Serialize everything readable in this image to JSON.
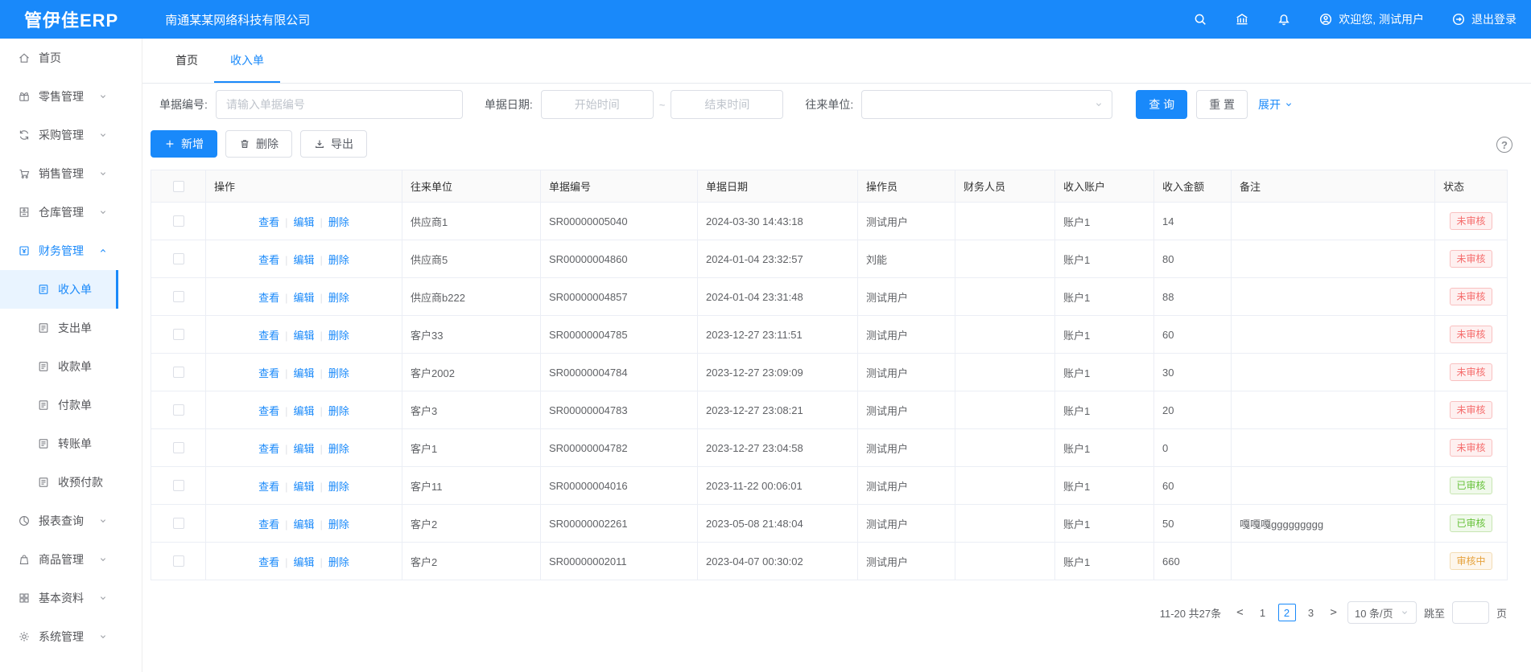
{
  "topbar": {
    "logo": "管伊佳ERP",
    "company": "南通某某网络科技有限公司",
    "welcome": "欢迎您, 测试用户",
    "logout": "退出登录"
  },
  "sidebar": {
    "items": [
      {
        "label": "首页",
        "icon": "home-icon"
      },
      {
        "label": "零售管理",
        "icon": "retail-icon",
        "chevron": "down"
      },
      {
        "label": "采购管理",
        "icon": "purchase-icon",
        "chevron": "down"
      },
      {
        "label": "销售管理",
        "icon": "sales-icon",
        "chevron": "down"
      },
      {
        "label": "仓库管理",
        "icon": "warehouse-icon",
        "chevron": "down"
      },
      {
        "label": "财务管理",
        "icon": "finance-icon",
        "chevron": "up",
        "active": true,
        "children": [
          {
            "label": "收入单",
            "icon": "doc-icon",
            "active": true
          },
          {
            "label": "支出单",
            "icon": "doc-icon"
          },
          {
            "label": "收款单",
            "icon": "doc-icon"
          },
          {
            "label": "付款单",
            "icon": "doc-icon"
          },
          {
            "label": "转账单",
            "icon": "doc-icon"
          },
          {
            "label": "收预付款",
            "icon": "doc-icon"
          }
        ]
      },
      {
        "label": "报表查询",
        "icon": "report-icon",
        "chevron": "down"
      },
      {
        "label": "商品管理",
        "icon": "goods-icon",
        "chevron": "down"
      },
      {
        "label": "基本资料",
        "icon": "basic-icon",
        "chevron": "down"
      },
      {
        "label": "系统管理",
        "icon": "system-icon",
        "chevron": "down"
      }
    ]
  },
  "tabs": {
    "home": "首页",
    "current": "收入单"
  },
  "filters": {
    "bill_no_label": "单据编号:",
    "bill_no_placeholder": "请输入单据编号",
    "date_label": "单据日期:",
    "date_start_placeholder": "开始时间",
    "date_separator": "~",
    "date_end_placeholder": "结束时间",
    "partner_label": "往来单位:",
    "search_label": "查 询",
    "reset_label": "重 置",
    "expand_label": "展开",
    "help_label": "?"
  },
  "toolbar": {
    "add_label": "新增",
    "delete_label": "删除",
    "export_label": "导出"
  },
  "table": {
    "headers": [
      "操作",
      "往来单位",
      "单据编号",
      "单据日期",
      "操作员",
      "财务人员",
      "收入账户",
      "收入金额",
      "备注",
      "状态"
    ],
    "op_links": [
      "查看",
      "编辑",
      "删除"
    ],
    "rows": [
      {
        "partner": "供应商1",
        "bill_no": "SR00000005040",
        "bill_date": "2024-03-30 14:43:18",
        "operator": "测试用户",
        "finance": "",
        "account": "账户1",
        "amount": "14",
        "remark": "",
        "status": "未审核",
        "status_type": "red"
      },
      {
        "partner": "供应商5",
        "bill_no": "SR00000004860",
        "bill_date": "2024-01-04 23:32:57",
        "operator": "刘能",
        "finance": "",
        "account": "账户1",
        "amount": "80",
        "remark": "",
        "status": "未审核",
        "status_type": "red"
      },
      {
        "partner": "供应商b222",
        "bill_no": "SR00000004857",
        "bill_date": "2024-01-04 23:31:48",
        "operator": "测试用户",
        "finance": "",
        "account": "账户1",
        "amount": "88",
        "remark": "",
        "status": "未审核",
        "status_type": "red"
      },
      {
        "partner": "客户33",
        "bill_no": "SR00000004785",
        "bill_date": "2023-12-27 23:11:51",
        "operator": "测试用户",
        "finance": "",
        "account": "账户1",
        "amount": "60",
        "remark": "",
        "status": "未审核",
        "status_type": "red"
      },
      {
        "partner": "客户2002",
        "bill_no": "SR00000004784",
        "bill_date": "2023-12-27 23:09:09",
        "operator": "测试用户",
        "finance": "",
        "account": "账户1",
        "amount": "30",
        "remark": "",
        "status": "未审核",
        "status_type": "red"
      },
      {
        "partner": "客户3",
        "bill_no": "SR00000004783",
        "bill_date": "2023-12-27 23:08:21",
        "operator": "测试用户",
        "finance": "",
        "account": "账户1",
        "amount": "20",
        "remark": "",
        "status": "未审核",
        "status_type": "red"
      },
      {
        "partner": "客户1",
        "bill_no": "SR00000004782",
        "bill_date": "2023-12-27 23:04:58",
        "operator": "测试用户",
        "finance": "",
        "account": "账户1",
        "amount": "0",
        "remark": "",
        "status": "未审核",
        "status_type": "red"
      },
      {
        "partner": "客户11",
        "bill_no": "SR00000004016",
        "bill_date": "2023-11-22 00:06:01",
        "operator": "测试用户",
        "finance": "",
        "account": "账户1",
        "amount": "60",
        "remark": "",
        "status": "已审核",
        "status_type": "green"
      },
      {
        "partner": "客户2",
        "bill_no": "SR00000002261",
        "bill_date": "2023-05-08 21:48:04",
        "operator": "测试用户",
        "finance": "",
        "account": "账户1",
        "amount": "50",
        "remark": "嘎嘎嘎ggggggggg",
        "status": "已审核",
        "status_type": "green"
      },
      {
        "partner": "客户2",
        "bill_no": "SR00000002011",
        "bill_date": "2023-04-07 00:30:02",
        "operator": "测试用户",
        "finance": "",
        "account": "账户1",
        "amount": "660",
        "remark": "",
        "status": "审核中",
        "status_type": "orange"
      }
    ]
  },
  "pagination": {
    "total_text": "11-20 共27条",
    "prev": "<",
    "next": ">",
    "pages": [
      "1",
      "2",
      "3"
    ],
    "current": "2",
    "page_size": "10 条/页",
    "jump_prefix": "跳至",
    "jump_suffix": "页"
  },
  "colors": {
    "accent": "#1989fa",
    "status_red": "#f56c6c",
    "status_green": "#67c23a",
    "status_orange": "#e6a23c"
  }
}
